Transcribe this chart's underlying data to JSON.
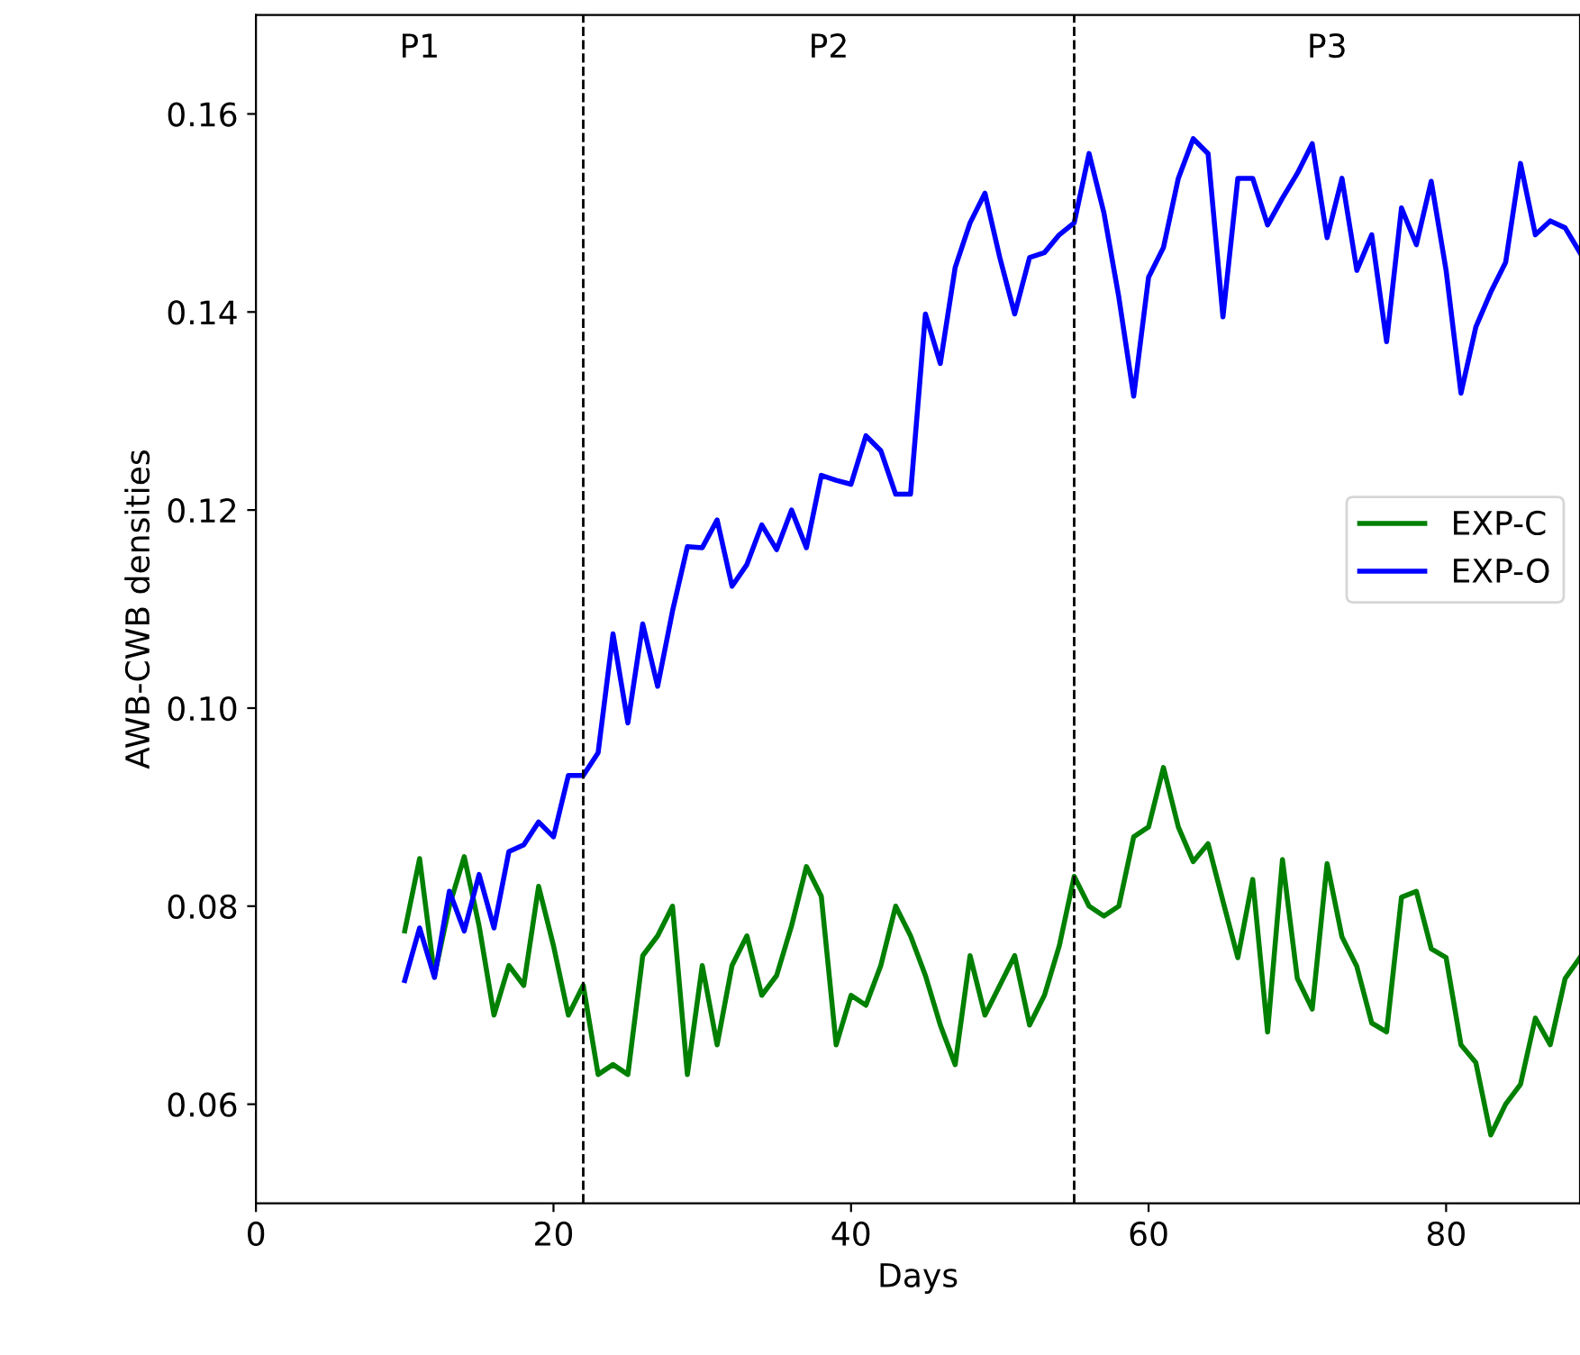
{
  "chart_data": {
    "type": "line",
    "xlabel": "Days",
    "ylabel": "AWB-CWB densities",
    "x": [
      10,
      11,
      12,
      13,
      14,
      15,
      16,
      17,
      18,
      19,
      20,
      21,
      22,
      23,
      24,
      25,
      26,
      27,
      28,
      29,
      30,
      31,
      32,
      33,
      34,
      35,
      36,
      37,
      38,
      39,
      40,
      41,
      42,
      43,
      44,
      45,
      46,
      47,
      48,
      49,
      50,
      51,
      52,
      53,
      54,
      55,
      56,
      57,
      58,
      59,
      60,
      61,
      62,
      63,
      64,
      65,
      66,
      67,
      68,
      69,
      70,
      71,
      72,
      73,
      74,
      75,
      76,
      77,
      78,
      79,
      80,
      81,
      82,
      83,
      84,
      85,
      86,
      87,
      88,
      89
    ],
    "series": [
      {
        "name": "EXP-C",
        "color": "#008000",
        "values": [
          0.0775,
          0.0848,
          0.073,
          0.08,
          0.085,
          0.078,
          0.069,
          0.074,
          0.072,
          0.082,
          0.076,
          0.069,
          0.072,
          0.063,
          0.064,
          0.063,
          0.075,
          0.077,
          0.08,
          0.063,
          0.074,
          0.066,
          0.074,
          0.077,
          0.071,
          0.073,
          0.078,
          0.084,
          0.081,
          0.066,
          0.071,
          0.07,
          0.074,
          0.08,
          0.077,
          0.073,
          0.068,
          0.064,
          0.075,
          0.069,
          0.072,
          0.075,
          0.068,
          0.071,
          0.076,
          0.083,
          0.08,
          0.079,
          0.08,
          0.087,
          0.088,
          0.094,
          0.088,
          0.0845,
          0.0863,
          0.0805,
          0.0748,
          0.0827,
          0.0673,
          0.0847,
          0.0727,
          0.0696,
          0.0843,
          0.0769,
          0.0739,
          0.0682,
          0.0673,
          0.0809,
          0.0815,
          0.0757,
          0.0748,
          0.066,
          0.0642,
          0.0569,
          0.06,
          0.062,
          0.0687,
          0.066,
          0.0727,
          0.0748
        ]
      },
      {
        "name": "EXP-O",
        "color": "#0000ff",
        "values": [
          0.0725,
          0.0778,
          0.0728,
          0.0815,
          0.0775,
          0.0832,
          0.0778,
          0.0855,
          0.0862,
          0.0885,
          0.087,
          0.0932,
          0.0932,
          0.0955,
          0.1075,
          0.0985,
          0.1085,
          0.1022,
          0.1098,
          0.1163,
          0.1162,
          0.119,
          0.1123,
          0.1145,
          0.1185,
          0.116,
          0.12,
          0.1162,
          0.1235,
          0.123,
          0.1226,
          0.1275,
          0.126,
          0.1216,
          0.1216,
          0.1398,
          0.1348,
          0.1445,
          0.149,
          0.152,
          0.1455,
          0.1398,
          0.1455,
          0.146,
          0.1478,
          0.149,
          0.156,
          0.15,
          0.1415,
          0.1315,
          0.1435,
          0.1465,
          0.1535,
          0.1575,
          0.156,
          0.1395,
          0.1535,
          0.1535,
          0.1488,
          0.1515,
          0.154,
          0.157,
          0.1475,
          0.1535,
          0.1442,
          0.1478,
          0.137,
          0.1505,
          0.1468,
          0.1532,
          0.1442,
          0.1318,
          0.1385,
          0.142,
          0.145,
          0.155,
          0.1478,
          0.1492,
          0.1485,
          0.146
        ]
      }
    ],
    "xlim": [
      0,
      89
    ],
    "xticks": [
      0,
      20,
      40,
      60,
      80
    ],
    "ylim": [
      0.05,
      0.17
    ],
    "yticks": [
      {
        "value": 0.06,
        "label": "0.06"
      },
      {
        "value": 0.08,
        "label": "0.08"
      },
      {
        "value": 0.1,
        "label": "0.10"
      },
      {
        "value": 0.12,
        "label": "0.12"
      },
      {
        "value": 0.14,
        "label": "0.14"
      },
      {
        "value": 0.16,
        "label": "0.16"
      }
    ],
    "ref_lines": [
      {
        "axis": "x",
        "value": 22,
        "color": "#000000",
        "line_style": "dashed"
      },
      {
        "axis": "x",
        "value": 55,
        "color": "#000000",
        "line_style": "dashed"
      }
    ],
    "annotations": [
      "P1",
      "P2",
      "P3"
    ],
    "legend": "right",
    "grid": false,
    "marker": "none",
    "line_style": "solid"
  }
}
